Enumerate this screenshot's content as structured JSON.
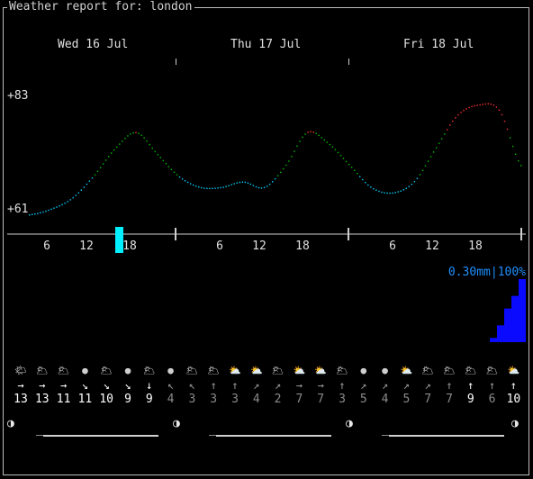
{
  "title": "Weather report for: london",
  "days": [
    "Wed 16 Jul",
    "Thu 17 Jul",
    "Fri 18 Jul"
  ],
  "y_labels": {
    "max": "+83",
    "min": "+61"
  },
  "x_hour_labels": [
    "6",
    "12",
    "18",
    "6",
    "12",
    "18",
    "6",
    "12",
    "18"
  ],
  "precip_label": "0.30mm|100%",
  "weather_icons": [
    "🌤",
    "🌥",
    "🌥",
    "●",
    "🌥",
    "●",
    "🌥",
    "●",
    "🌥",
    "🌥",
    "⛅",
    "⛅",
    "🌥",
    "⛅",
    "⛅",
    "🌥",
    "●",
    "●",
    "⛅",
    "🌥",
    "🌥",
    "🌥",
    "🌥",
    "⛅"
  ],
  "wind_arrows": [
    "→",
    "→",
    "→",
    "↘",
    "↘",
    "↘",
    "↓",
    "↖",
    "↖",
    "↑",
    "↑",
    "↗",
    "↗",
    "→",
    "→",
    "↑",
    "↗",
    "↗",
    "↗",
    "↗",
    "↑",
    "↑",
    "↑",
    "↑"
  ],
  "wind_speeds": [
    "13",
    "13",
    "11",
    "11",
    "10",
    "9",
    "9",
    "4",
    "3",
    "3",
    "3",
    "4",
    "2",
    "7",
    "7",
    "3",
    "5",
    "4",
    "5",
    "7",
    "7",
    "9",
    "6",
    "10"
  ],
  "moon_glyph": "◑",
  "colors": {
    "temp_low": "#00d0ff",
    "temp_mid": "#00c000",
    "temp_high": "#ff3030",
    "precip": "#0a0aff",
    "now_marker": "#00f0ff",
    "accent": "#1e8fff"
  },
  "chart_data": {
    "type": "line",
    "ylim": [
      61,
      83
    ],
    "x": [
      "Wed 16 Jul 03:00",
      "06:00",
      "09:00",
      "12:00",
      "15:00",
      "18:00",
      "21:00",
      "Thu 17 Jul 00:00",
      "03:00",
      "06:00",
      "09:00",
      "12:00",
      "15:00",
      "18:00",
      "21:00",
      "Fri 18 Jul 00:00",
      "03:00",
      "06:00",
      "09:00",
      "12:00",
      "15:00",
      "18:00",
      "21:00",
      "Sat 19 Jul 00:00"
    ],
    "series": [
      {
        "values": [
          61,
          62,
          64,
          68,
          73,
          76,
          72,
          68,
          66,
          66,
          67,
          66,
          70,
          76,
          74,
          70,
          66,
          65,
          67,
          73,
          79,
          81,
          80,
          70
        ]
      }
    ],
    "precipitation_mm": [
      0,
      0,
      0,
      0,
      0,
      0,
      0,
      0,
      0,
      0,
      0,
      0,
      0,
      0,
      0,
      0,
      0,
      0,
      0,
      0.02,
      0.08,
      0.16,
      0.22,
      0.3
    ]
  }
}
